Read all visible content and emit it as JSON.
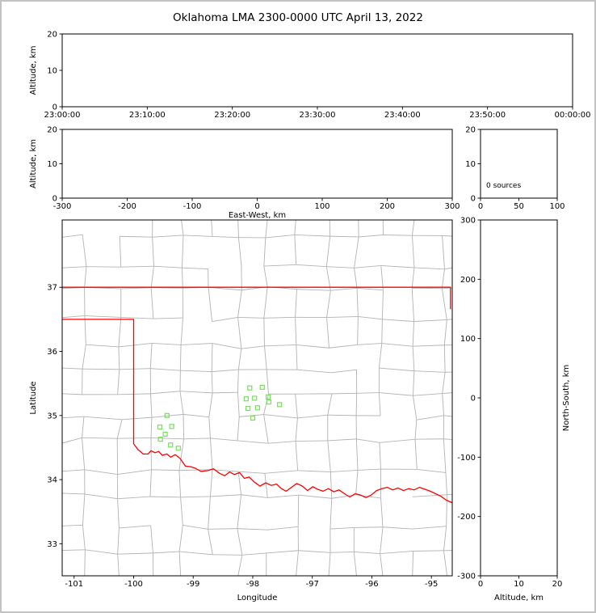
{
  "title": "Oklahoma LMA 2300-0000 UTC April 13, 2022",
  "colors": {
    "background": "#ffffff",
    "frame_border": "#c3c3c3",
    "axis": "#000000",
    "tick_label": "#000000",
    "county_lines": "#b3b3b3",
    "state_border": "#ff0000",
    "station_marker": "#76e05c",
    "annotation": "#000000"
  },
  "chart_data": [
    {
      "id": "time_height",
      "type": "scatter",
      "description": "Altitude vs time panel, no lightning sources plotted",
      "xlabel": "",
      "ylabel": "Altitude, km",
      "xlim": [
        0,
        3600
      ],
      "ylim": [
        0,
        20
      ],
      "xticks": [
        {
          "v": 0,
          "label": "23:00:00"
        },
        {
          "v": 600,
          "label": "23:10:00"
        },
        {
          "v": 1200,
          "label": "23:20:00"
        },
        {
          "v": 1800,
          "label": "23:30:00"
        },
        {
          "v": 2400,
          "label": "23:40:00"
        },
        {
          "v": 3000,
          "label": "23:50:00"
        },
        {
          "v": 3600,
          "label": "00:00:00"
        }
      ],
      "yticks": [
        {
          "v": 0,
          "label": "0"
        },
        {
          "v": 10,
          "label": "10"
        },
        {
          "v": 20,
          "label": "20"
        }
      ],
      "points": []
    },
    {
      "id": "ew_height",
      "type": "scatter",
      "description": "Altitude vs East-West distance panel, empty",
      "xlabel": "East-West, km",
      "ylabel": "Altitude, km",
      "xlim": [
        -300,
        300
      ],
      "ylim": [
        0,
        20
      ],
      "xticks": [
        {
          "v": -300,
          "label": "-300"
        },
        {
          "v": -200,
          "label": "-200"
        },
        {
          "v": -100,
          "label": "-100"
        },
        {
          "v": 0,
          "label": "0"
        },
        {
          "v": 100,
          "label": "100"
        },
        {
          "v": 200,
          "label": "200"
        },
        {
          "v": 300,
          "label": "300"
        }
      ],
      "yticks": [
        {
          "v": 0,
          "label": "0"
        },
        {
          "v": 10,
          "label": "10"
        },
        {
          "v": 20,
          "label": "20"
        }
      ],
      "points": []
    },
    {
      "id": "alt_histogram",
      "type": "line",
      "description": "Source-count histogram vs altitude, zero sources",
      "xlabel": "",
      "ylabel": "",
      "xlim": [
        0,
        100
      ],
      "ylim": [
        0,
        20
      ],
      "xticks": [
        {
          "v": 0,
          "label": "0"
        },
        {
          "v": 50,
          "label": "50"
        },
        {
          "v": 100,
          "label": "100"
        }
      ],
      "yticks": [
        {
          "v": 0,
          "label": "0"
        },
        {
          "v": 10,
          "label": "10"
        },
        {
          "v": 20,
          "label": "20"
        }
      ],
      "annotation": "0 sources",
      "points": []
    },
    {
      "id": "plan_view",
      "type": "scatter",
      "description": "Plan view map of Oklahoma with county lines, state border and LMA stations; no lightning sources",
      "xlabel": "Longitude",
      "ylabel": "Latitude",
      "xlim": [
        -101.2,
        -94.65
      ],
      "ylim": [
        32.5,
        38.05
      ],
      "xticks": [
        {
          "v": -101,
          "label": "-101"
        },
        {
          "v": -100,
          "label": "-100"
        },
        {
          "v": -99,
          "label": "-99"
        },
        {
          "v": -98,
          "label": "-98"
        },
        {
          "v": -97,
          "label": "-97"
        },
        {
          "v": -96,
          "label": "-96"
        },
        {
          "v": -95,
          "label": "-95"
        }
      ],
      "yticks": [
        {
          "v": 33,
          "label": "33"
        },
        {
          "v": 34,
          "label": "34"
        },
        {
          "v": 35,
          "label": "35"
        },
        {
          "v": 36,
          "label": "36"
        },
        {
          "v": 37,
          "label": "37"
        }
      ],
      "points": []
    },
    {
      "id": "ns_height",
      "type": "scatter",
      "description": "North-South distance vs altitude panel, empty",
      "xlabel": "Altitude, km",
      "ylabel": "",
      "ylabel_right": "North-South, km",
      "xlim": [
        0,
        20
      ],
      "ylim": [
        -300,
        300
      ],
      "xticks": [
        {
          "v": 0,
          "label": "0"
        },
        {
          "v": 10,
          "label": "10"
        },
        {
          "v": 20,
          "label": "20"
        }
      ],
      "yticks": [
        {
          "v": -300,
          "label": "-300"
        },
        {
          "v": -200,
          "label": "-200"
        },
        {
          "v": -100,
          "label": "-100"
        },
        {
          "v": 0,
          "label": "0"
        },
        {
          "v": 100,
          "label": "100"
        },
        {
          "v": 200,
          "label": "200"
        },
        {
          "v": 300,
          "label": "300"
        }
      ],
      "points": []
    }
  ],
  "map": {
    "state_border_segments": [
      [
        [
          -101.3,
          37.0
        ],
        [
          -94.68,
          37.0
        ],
        [
          -94.68,
          36.66
        ]
      ],
      [
        [
          -101.3,
          36.5
        ],
        [
          -100.0,
          36.5
        ],
        [
          -100.0,
          34.56
        ],
        [
          -99.93,
          34.47
        ],
        [
          -99.84,
          34.4
        ],
        [
          -99.76,
          34.4
        ],
        [
          -99.71,
          34.45
        ],
        [
          -99.64,
          34.42
        ],
        [
          -99.58,
          34.44
        ],
        [
          -99.52,
          34.38
        ],
        [
          -99.44,
          34.4
        ],
        [
          -99.38,
          34.35
        ],
        [
          -99.3,
          34.39
        ],
        [
          -99.22,
          34.33
        ],
        [
          -99.13,
          34.21
        ],
        [
          -99.04,
          34.2
        ],
        [
          -98.97,
          34.18
        ],
        [
          -98.87,
          34.13
        ],
        [
          -98.76,
          34.14
        ],
        [
          -98.66,
          34.17
        ],
        [
          -98.56,
          34.1
        ],
        [
          -98.47,
          34.06
        ],
        [
          -98.39,
          34.12
        ],
        [
          -98.31,
          34.08
        ],
        [
          -98.22,
          34.11
        ],
        [
          -98.14,
          34.02
        ],
        [
          -98.06,
          34.04
        ],
        [
          -97.97,
          33.96
        ],
        [
          -97.88,
          33.9
        ],
        [
          -97.78,
          33.95
        ],
        [
          -97.69,
          33.91
        ],
        [
          -97.6,
          33.93
        ],
        [
          -97.52,
          33.86
        ],
        [
          -97.44,
          33.82
        ],
        [
          -97.35,
          33.88
        ],
        [
          -97.26,
          33.94
        ],
        [
          -97.17,
          33.9
        ],
        [
          -97.08,
          33.83
        ],
        [
          -96.99,
          33.89
        ],
        [
          -96.91,
          33.85
        ],
        [
          -96.82,
          33.82
        ],
        [
          -96.73,
          33.86
        ],
        [
          -96.64,
          33.81
        ],
        [
          -96.55,
          33.84
        ],
        [
          -96.46,
          33.78
        ],
        [
          -96.37,
          33.73
        ],
        [
          -96.28,
          33.78
        ],
        [
          -96.19,
          33.76
        ],
        [
          -96.1,
          33.72
        ],
        [
          -96.01,
          33.76
        ],
        [
          -95.92,
          33.83
        ],
        [
          -95.83,
          33.86
        ],
        [
          -95.74,
          33.88
        ],
        [
          -95.65,
          33.84
        ],
        [
          -95.56,
          33.87
        ],
        [
          -95.47,
          33.83
        ],
        [
          -95.38,
          33.86
        ],
        [
          -95.29,
          33.84
        ],
        [
          -95.2,
          33.88
        ],
        [
          -95.11,
          33.85
        ],
        [
          -95.02,
          33.82
        ],
        [
          -94.93,
          33.78
        ],
        [
          -94.84,
          33.74
        ],
        [
          -94.75,
          33.68
        ],
        [
          -94.6,
          33.62
        ]
      ]
    ],
    "stations": [
      [
        -98.05,
        35.43
      ],
      [
        -97.84,
        35.44
      ],
      [
        -98.11,
        35.26
      ],
      [
        -97.97,
        35.27
      ],
      [
        -97.74,
        35.29
      ],
      [
        -98.08,
        35.11
      ],
      [
        -97.92,
        35.12
      ],
      [
        -97.73,
        35.21
      ],
      [
        -98.0,
        34.96
      ],
      [
        -97.55,
        35.17
      ],
      [
        -99.44,
        35.0
      ],
      [
        -99.56,
        34.82
      ],
      [
        -99.36,
        34.83
      ],
      [
        -99.55,
        34.63
      ],
      [
        -99.38,
        34.54
      ],
      [
        -99.25,
        34.49
      ],
      [
        -99.47,
        34.71
      ]
    ],
    "county_grid": {
      "seed": 7,
      "lon_step": 0.5,
      "lat_step": 0.42,
      "jitter": 0.045,
      "skip_probability": 0.12
    }
  }
}
